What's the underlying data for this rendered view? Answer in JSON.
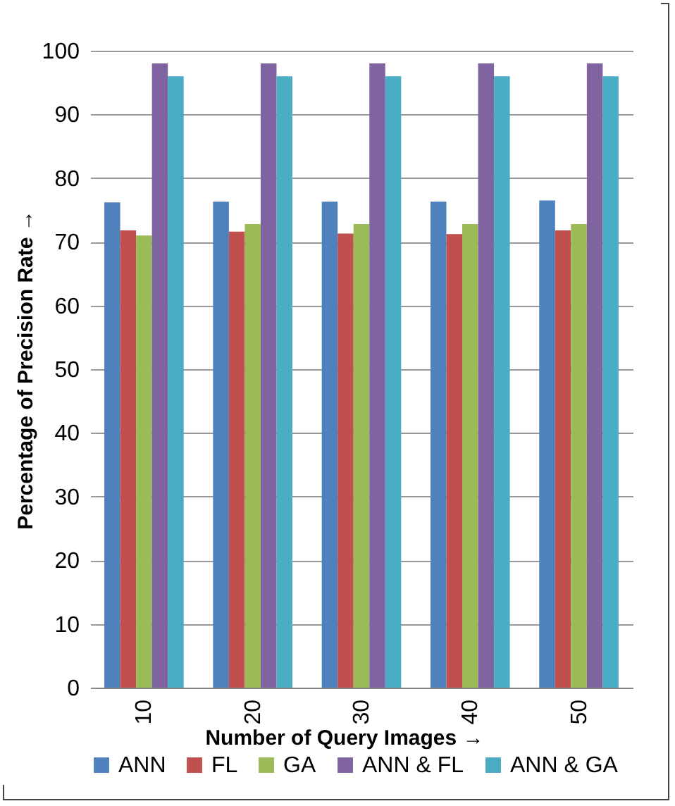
{
  "chart_data": {
    "type": "bar",
    "xlabel": "Number of Query Images   →",
    "ylabel": "Percentage of Precision Rate        →",
    "categories": [
      "10",
      "20",
      "30",
      "40",
      "50"
    ],
    "series": [
      {
        "name": "ANN",
        "color": "#4f81bd",
        "values": [
          76.2,
          76.3,
          76.3,
          76.3,
          76.5
        ]
      },
      {
        "name": "FL",
        "color": "#c0504d",
        "values": [
          71.8,
          71.6,
          71.3,
          71.2,
          71.8
        ]
      },
      {
        "name": "GA",
        "color": "#9bbb59",
        "values": [
          71.0,
          72.8,
          72.8,
          72.8,
          72.8
        ]
      },
      {
        "name": "ANN & FL",
        "color": "#8064a2",
        "values": [
          98,
          98,
          98,
          98,
          98
        ]
      },
      {
        "name": "ANN & GA",
        "color": "#4bacc6",
        "values": [
          96,
          96,
          96,
          96,
          96
        ]
      }
    ],
    "ylim": [
      0,
      100
    ],
    "yticks": [
      0,
      10,
      20,
      30,
      40,
      50,
      60,
      70,
      80,
      90,
      100
    ],
    "grid": "y",
    "legend": "bottom"
  }
}
